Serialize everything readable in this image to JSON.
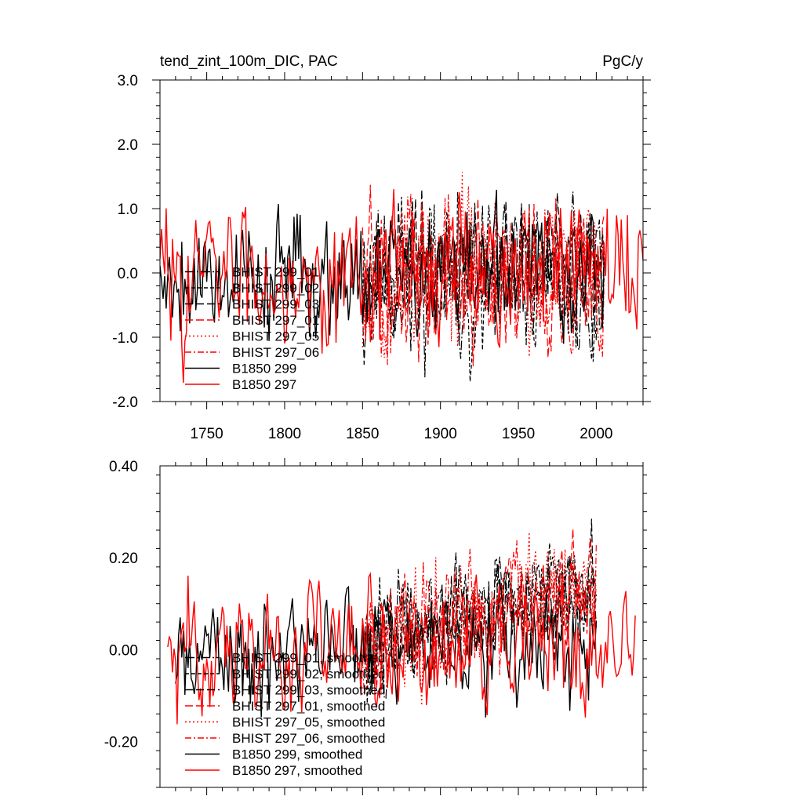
{
  "chart_data": [
    {
      "type": "line",
      "title": "tend_zint_100m_DIC, PAC",
      "units": "PgC/y",
      "xlim": [
        1720,
        2030
      ],
      "ylim": [
        -2.0,
        3.0
      ],
      "xticks": [
        1750,
        1800,
        1850,
        1900,
        1950,
        2000
      ],
      "xtick_labels": [
        "1750",
        "1800",
        "1850",
        "1900",
        "1950",
        "2000"
      ],
      "yticks": [
        -2.0,
        -1.0,
        0.0,
        1.0,
        2.0,
        3.0
      ],
      "ytick_labels": [
        "-2.0",
        "-1.0",
        "0.0",
        "1.0",
        "2.0",
        "3.0"
      ],
      "legend_position": "lower-left",
      "series": [
        {
          "name": "BHIST 299_01",
          "color": "#000000",
          "dash": "long-dash-dot",
          "start": 1850,
          "end": 2005,
          "mean": 0.0,
          "amp": 0.85,
          "trend": 0.0,
          "seed": 11
        },
        {
          "name": "BHIST 299_02",
          "color": "#000000",
          "dash": "dash",
          "start": 1850,
          "end": 2005,
          "mean": 0.0,
          "amp": 0.85,
          "trend": 0.0,
          "seed": 23
        },
        {
          "name": "BHIST 299_03",
          "color": "#000000",
          "dash": "long-dash",
          "start": 1850,
          "end": 2005,
          "mean": 0.0,
          "amp": 0.85,
          "trend": 0.0,
          "seed": 37
        },
        {
          "name": "BHIST 297_01",
          "color": "#ff0000",
          "dash": "long-dash",
          "start": 1850,
          "end": 2005,
          "mean": 0.0,
          "amp": 0.85,
          "trend": 0.0,
          "seed": 41
        },
        {
          "name": "BHIST 297_05",
          "color": "#ff0000",
          "dash": "dot",
          "start": 1850,
          "end": 2005,
          "mean": 0.0,
          "amp": 0.85,
          "trend": 0.0,
          "seed": 53
        },
        {
          "name": "BHIST 297_06",
          "color": "#ff0000",
          "dash": "dash-dot",
          "start": 1850,
          "end": 2005,
          "mean": 0.0,
          "amp": 0.85,
          "trend": 0.0,
          "seed": 67
        },
        {
          "name": "B1850 299",
          "color": "#000000",
          "dash": "solid",
          "start": 1720,
          "end": 2005,
          "mean": 0.0,
          "amp": 0.7,
          "trend": 0.0,
          "seed": 79
        },
        {
          "name": "B1850 297",
          "color": "#ff0000",
          "dash": "solid",
          "start": 1720,
          "end": 2030,
          "mean": 0.0,
          "amp": 0.75,
          "trend": 0.0,
          "seed": 83
        }
      ]
    },
    {
      "type": "line",
      "title": "",
      "xlim": [
        1720,
        2030
      ],
      "ylim": [
        -0.3,
        0.4
      ],
      "xticks": [
        1750,
        1800,
        1850,
        1900,
        1950,
        2000
      ],
      "yticks": [
        -0.2,
        0.0,
        0.2,
        0.4
      ],
      "ytick_labels": [
        "-0.20",
        "0.00",
        "0.20",
        "0.40"
      ],
      "legend_position": "lower-left",
      "series": [
        {
          "name": "BHIST 299_01, smoothed",
          "color": "#000000",
          "dash": "long-dash-dot",
          "start": 1850,
          "end": 2000,
          "mean": 0.02,
          "amp": 0.08,
          "trend": 0.0008,
          "seed": 101
        },
        {
          "name": "BHIST 299_02, smoothed",
          "color": "#000000",
          "dash": "dash",
          "start": 1850,
          "end": 2000,
          "mean": 0.02,
          "amp": 0.08,
          "trend": 0.0008,
          "seed": 113
        },
        {
          "name": "BHIST 299_03, smoothed",
          "color": "#000000",
          "dash": "long-dash",
          "start": 1850,
          "end": 2000,
          "mean": 0.02,
          "amp": 0.08,
          "trend": 0.0008,
          "seed": 127
        },
        {
          "name": "BHIST 297_01, smoothed",
          "color": "#ff0000",
          "dash": "long-dash",
          "start": 1850,
          "end": 2000,
          "mean": 0.02,
          "amp": 0.08,
          "trend": 0.0008,
          "seed": 131
        },
        {
          "name": "BHIST 297_05, smoothed",
          "color": "#ff0000",
          "dash": "dot",
          "start": 1850,
          "end": 2000,
          "mean": 0.02,
          "amp": 0.08,
          "trend": 0.0008,
          "seed": 149
        },
        {
          "name": "BHIST 297_06, smoothed",
          "color": "#ff0000",
          "dash": "dash-dot",
          "start": 1850,
          "end": 2000,
          "mean": 0.02,
          "amp": 0.08,
          "trend": 0.0008,
          "seed": 157
        },
        {
          "name": "B1850 299, smoothed",
          "color": "#000000",
          "dash": "solid",
          "start": 1730,
          "end": 2000,
          "mean": 0.0,
          "amp": 0.08,
          "trend": 0.0,
          "seed": 163
        },
        {
          "name": "B1850 297, smoothed",
          "color": "#ff0000",
          "dash": "solid",
          "start": 1725,
          "end": 2025,
          "mean": 0.0,
          "amp": 0.09,
          "trend": 0.0,
          "seed": 173
        }
      ]
    }
  ]
}
